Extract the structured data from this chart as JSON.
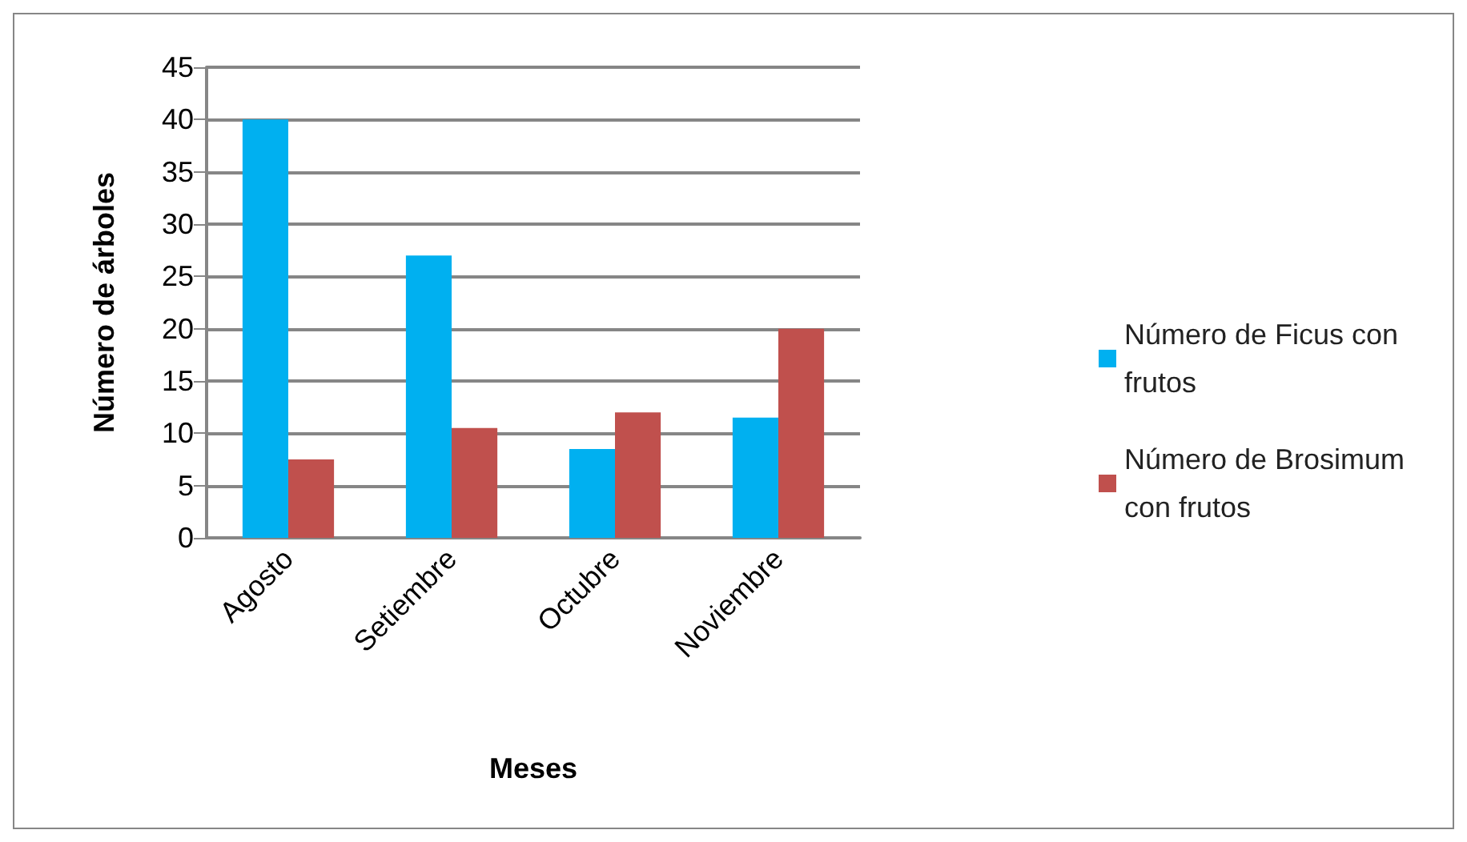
{
  "chart_data": {
    "type": "bar",
    "xlabel": "Meses",
    "ylabel": "Número de árboles",
    "categories": [
      "Agosto",
      "Setiembre",
      "Octubre",
      "Noviembre"
    ],
    "series": [
      {
        "name": "Número de Ficus con frutos",
        "color": "#00b0f0",
        "values": [
          40,
          27,
          8.5,
          11.5
        ]
      },
      {
        "name": "Número de Brosimum con frutos",
        "color": "#c0504d",
        "values": [
          7.5,
          10.5,
          12,
          20
        ]
      }
    ],
    "ylim": [
      0,
      45
    ],
    "yticks": [
      0,
      5,
      10,
      15,
      20,
      25,
      30,
      35,
      40,
      45
    ],
    "grid": "y",
    "legend": "right"
  }
}
